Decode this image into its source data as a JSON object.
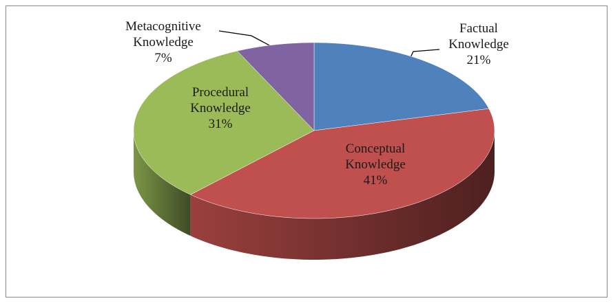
{
  "chart_data": {
    "type": "pie",
    "categories": [
      "Factual Knowledge",
      "Conceptual Knowledge",
      "Procedural Knowledge",
      "Metacognitive Knowledge"
    ],
    "values": [
      21,
      41,
      31,
      7
    ],
    "value_labels": [
      "21%",
      "41%",
      "31%",
      "7%"
    ],
    "colors": [
      "#4f81bd",
      "#c0504d",
      "#9bbb59",
      "#8064a2"
    ]
  }
}
